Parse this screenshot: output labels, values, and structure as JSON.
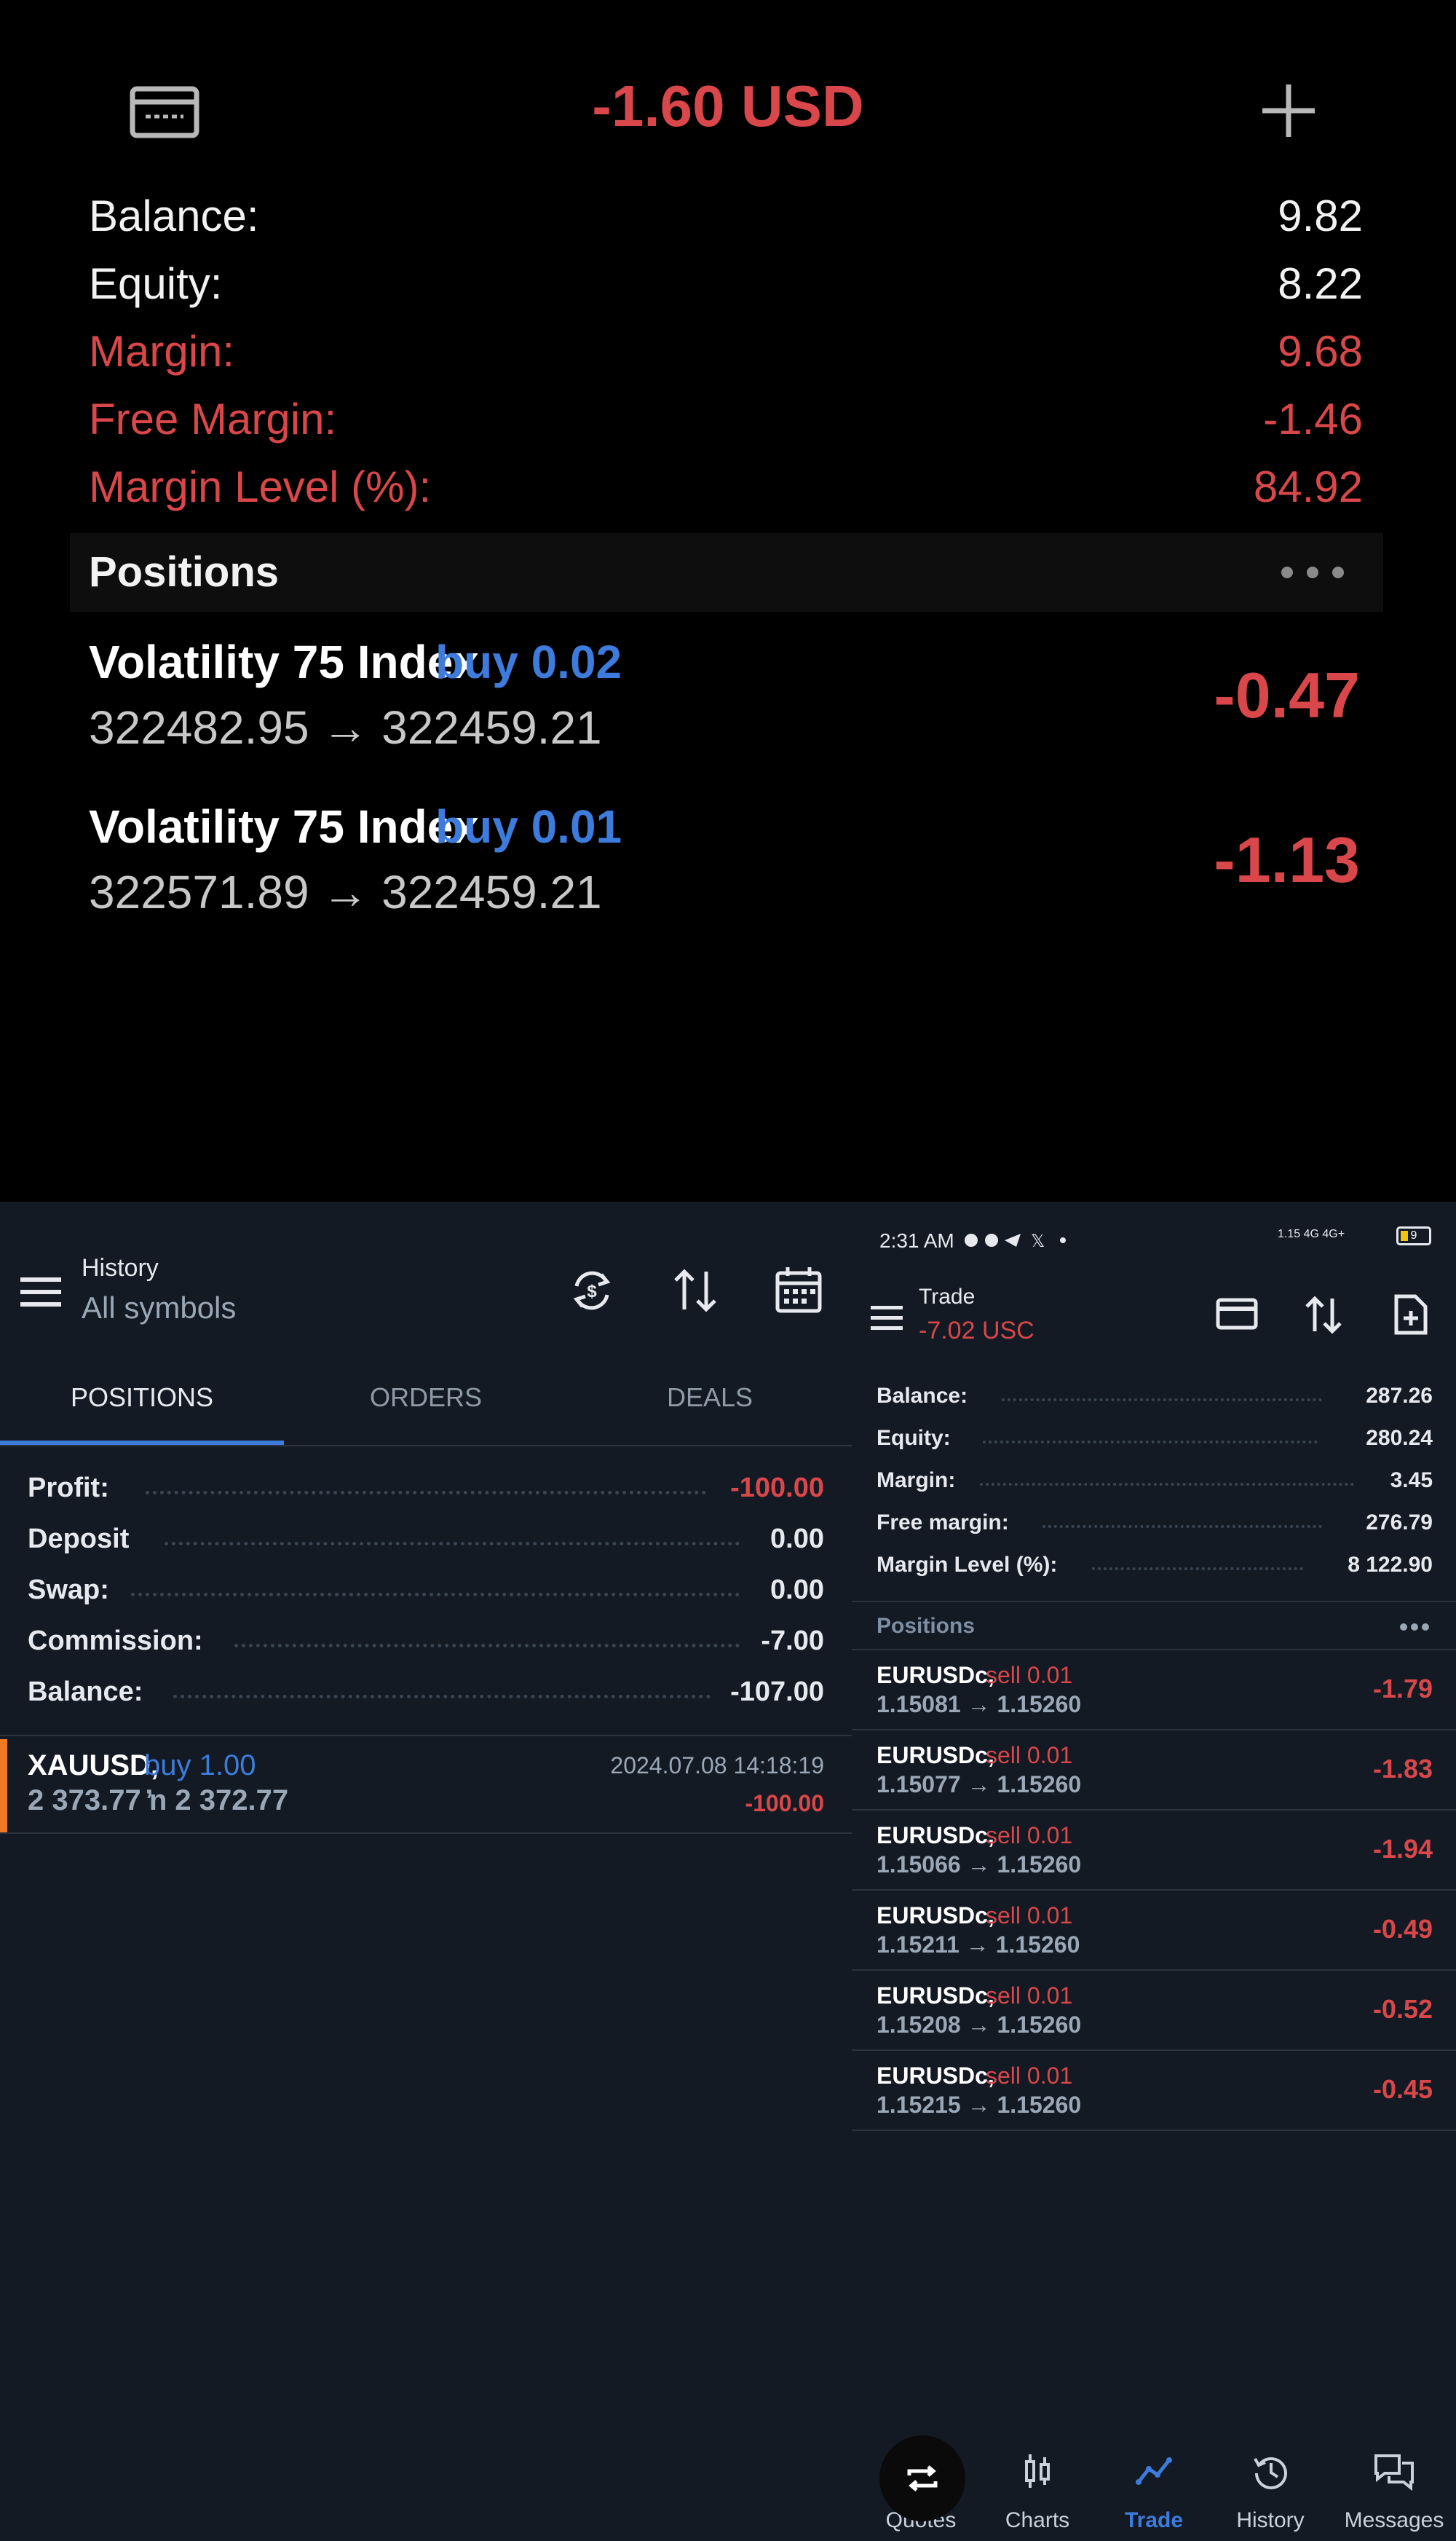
{
  "top": {
    "title": "-1.60 USD",
    "summary": [
      {
        "label": "Balance:",
        "value": "9.82",
        "color": "white"
      },
      {
        "label": "Equity:",
        "value": "8.22",
        "color": "white"
      },
      {
        "label": "Margin:",
        "value": "9.68",
        "color": "red"
      },
      {
        "label": "Free Margin:",
        "value": "-1.46",
        "color": "red"
      },
      {
        "label": "Margin Level (%):",
        "value": "84.92",
        "color": "red"
      }
    ],
    "positions_header": "Positions",
    "positions": [
      {
        "symbol": "Volatility 75 Index",
        "side": "buy 0.02",
        "prices": "322482.95 → 322459.21",
        "profit": "-0.47"
      },
      {
        "symbol": "Volatility 75 Index",
        "side": "buy 0.01",
        "prices": "322571.89 → 322459.21",
        "profit": "-1.13"
      }
    ]
  },
  "history": {
    "title": "History",
    "subtitle": "All symbols",
    "tabs": [
      "POSITIONS",
      "ORDERS",
      "DEALS"
    ],
    "active_tab": "POSITIONS",
    "summary": [
      {
        "label": "Profit:",
        "value": "-100.00",
        "color": "red"
      },
      {
        "label": "Deposit",
        "value": "0.00",
        "color": "white"
      },
      {
        "label": "Swap:",
        "value": "0.00",
        "color": "white"
      },
      {
        "label": "Commission:",
        "value": "-7.00",
        "color": "white"
      },
      {
        "label": "Balance:",
        "value": "-107.00",
        "color": "white"
      }
    ],
    "deal": {
      "symbol": "XAUUSD,",
      "side": "buy 1.00",
      "prices": "2 373.77 ̓n  2 372.77",
      "datetime": "2024.07.08 14:18:19",
      "profit": "-100.00"
    }
  },
  "trade": {
    "status_time": "2:31 AM",
    "status_right": "1.15 4G 4G+",
    "battery": "9",
    "title": "Trade",
    "subtitle": "-7.02 USC",
    "summary": [
      {
        "label": "Balance:",
        "value": "287.26"
      },
      {
        "label": "Equity:",
        "value": "280.24"
      },
      {
        "label": "Margin:",
        "value": "3.45"
      },
      {
        "label": "Free margin:",
        "value": "276.79"
      },
      {
        "label": "Margin Level (%):",
        "value": "8 122.90"
      }
    ],
    "positions_header": "Positions",
    "positions": [
      {
        "symbol": "EURUSDc,",
        "side": "sell 0.01",
        "prices": "1.15081 → 1.15260",
        "profit": "-1.79"
      },
      {
        "symbol": "EURUSDc,",
        "side": "sell 0.01",
        "prices": "1.15077 → 1.15260",
        "profit": "-1.83"
      },
      {
        "symbol": "EURUSDc,",
        "side": "sell 0.01",
        "prices": "1.15066 → 1.15260",
        "profit": "-1.94"
      },
      {
        "symbol": "EURUSDc,",
        "side": "sell 0.01",
        "prices": "1.15211 → 1.15260",
        "profit": "-0.49"
      },
      {
        "symbol": "EURUSDc,",
        "side": "sell 0.01",
        "prices": "1.15208 → 1.15260",
        "profit": "-0.52"
      },
      {
        "symbol": "EURUSDc,",
        "side": "sell 0.01",
        "prices": "1.15215 → 1.15260",
        "profit": "-0.45"
      }
    ],
    "nav": [
      {
        "label": "Quotes",
        "icon": "quotes-icon"
      },
      {
        "label": "Charts",
        "icon": "charts-icon"
      },
      {
        "label": "Trade",
        "icon": "trade-icon"
      },
      {
        "label": "History",
        "icon": "history-icon"
      },
      {
        "label": "Messages",
        "icon": "messages-icon"
      }
    ],
    "active_nav": "Trade"
  },
  "colors": {
    "red": "#d9474a",
    "blue": "#3d7bdc",
    "panel_bg": "#131a23",
    "accent_orange": "#f07a22"
  }
}
